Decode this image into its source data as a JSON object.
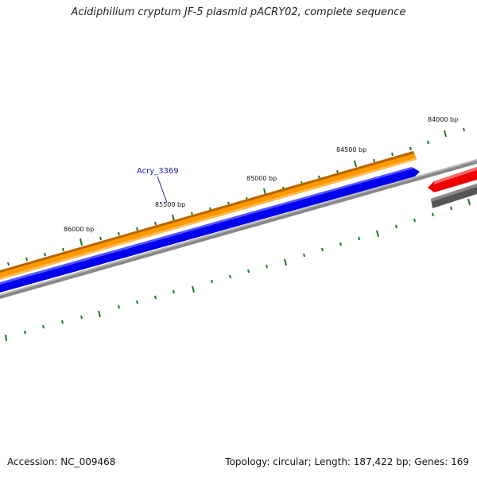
{
  "header": {
    "title": "Acidiphilium cryptum JF-5 plasmid pACRY02, complete sequence"
  },
  "map": {
    "tick_labels": [
      "84000 bp",
      "84500 bp",
      "85000 bp",
      "85500 bp",
      "86000 bp"
    ],
    "gene_label": "Acry_3369",
    "colors": {
      "forward_cds": "#ff9900",
      "reverse_cds": "#0000ee",
      "backbone": "#888888",
      "highlight": "#ee0000",
      "ticks": "#1a7a1a"
    }
  },
  "footer": {
    "accession": "Accession: NC_009468",
    "summary": "Topology: circular; Length: 187,422 bp; Genes: 169"
  }
}
